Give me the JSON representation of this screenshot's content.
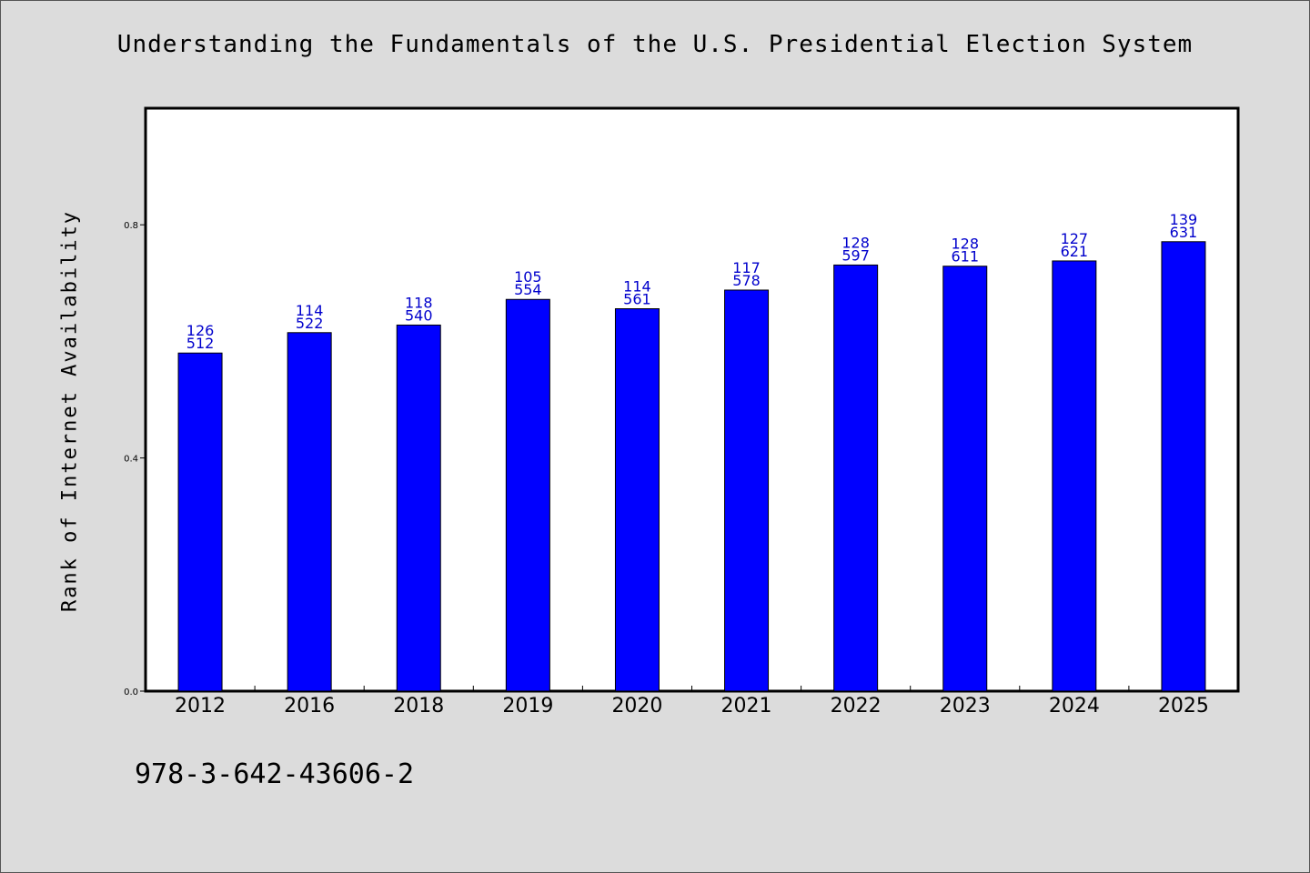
{
  "chart_data": {
    "type": "bar",
    "title": "Understanding the Fundamentals of the U.S. Presidential Election System",
    "ylabel": "Rank of Internet Availability",
    "xlabel": "",
    "categories": [
      "2012",
      "2016",
      "2018",
      "2019",
      "2020",
      "2021",
      "2022",
      "2023",
      "2024",
      "2025"
    ],
    "values": [
      0.58,
      0.615,
      0.628,
      0.672,
      0.656,
      0.688,
      0.731,
      0.729,
      0.738,
      0.771
    ],
    "label_line1": [
      "126",
      "114",
      "118",
      "105",
      "114",
      "117",
      "128",
      "128",
      "127",
      "139"
    ],
    "label_line2": [
      "512",
      "522",
      "540",
      "554",
      "561",
      "578",
      "597",
      "611",
      "621",
      "631"
    ],
    "ylim": [
      0,
      1.0
    ],
    "yticks": [
      0.0,
      0.4,
      0.8
    ],
    "ytick_labels": [
      "0.0",
      "0.4",
      "0.8"
    ],
    "bar_color": "#0000ff",
    "label_color": "#0000cc",
    "grid": false,
    "legend": "none"
  },
  "footer": {
    "isbn": "978-3-642-43606-2"
  }
}
